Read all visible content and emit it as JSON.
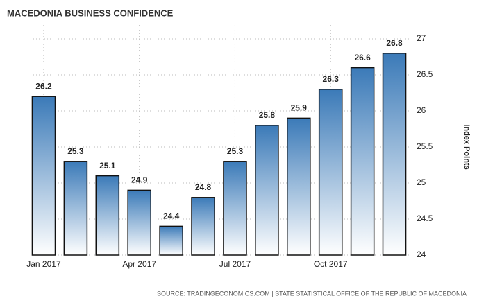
{
  "chart_data": {
    "type": "bar",
    "title": "MACEDONIA BUSINESS CONFIDENCE",
    "y_axis_label": "Index Points",
    "source": "SOURCE: TRADINGECONOMICS.COM | STATE STATISTICAL OFFICE OF THE REPUBLIC OF MACEDONIA",
    "categories": [
      "Jan 2017",
      null,
      null,
      "Apr 2017",
      null,
      null,
      "Jul 2017",
      null,
      null,
      "Oct 2017",
      null,
      null
    ],
    "values": [
      26.2,
      25.3,
      25.1,
      24.9,
      24.4,
      24.8,
      25.3,
      25.8,
      25.9,
      26.3,
      26.6,
      26.8
    ],
    "color": "#3b7ab8",
    "ylim": [
      24,
      27
    ],
    "yticks": [
      24,
      24.5,
      25,
      25.5,
      26,
      26.5,
      27
    ],
    "grid": true
  }
}
